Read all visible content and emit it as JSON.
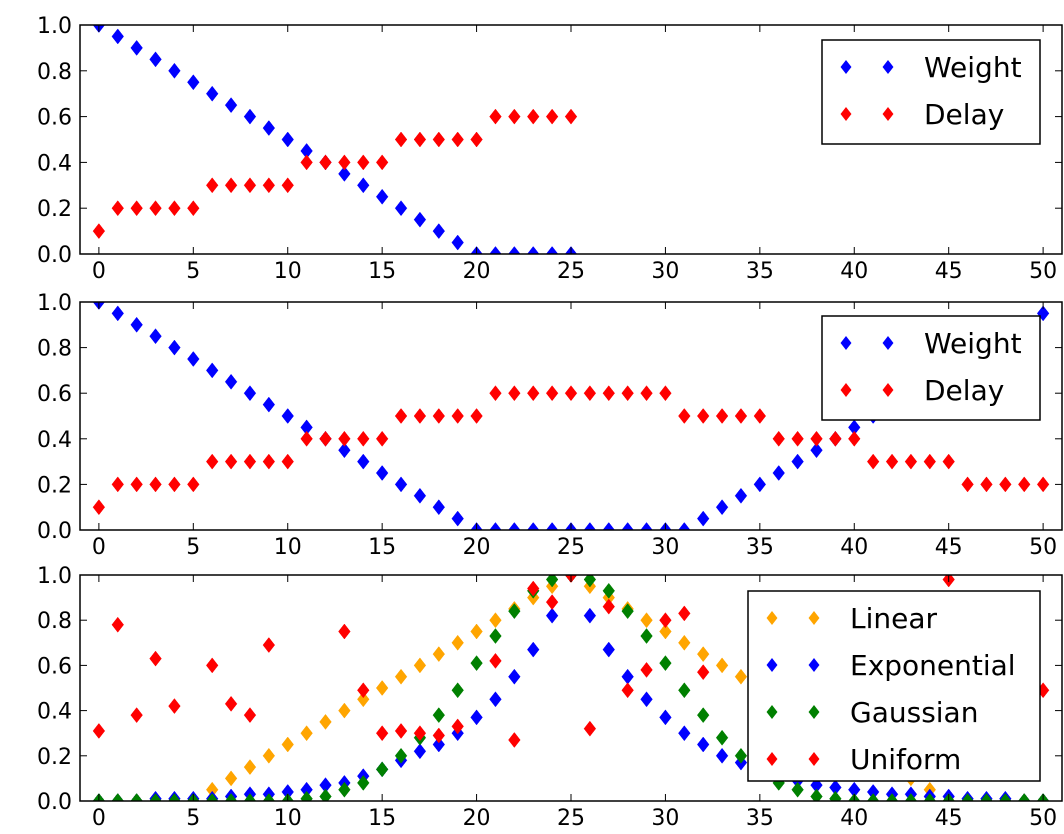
{
  "chart_data": [
    {
      "type": "scatter",
      "title": "",
      "xlabel": "",
      "ylabel": "",
      "xlim": [
        -1,
        51
      ],
      "ylim": [
        0,
        1
      ],
      "x_ticks": [
        "0",
        "5",
        "10",
        "15",
        "20",
        "25",
        "30",
        "35",
        "40",
        "45",
        "50"
      ],
      "y_ticks": [
        "0.0",
        "0.2",
        "0.4",
        "0.6",
        "0.8",
        "1.0"
      ],
      "grid": false,
      "legend_position": "top-right",
      "series": [
        {
          "name": "Weight",
          "color": "#0000ff",
          "x": [
            0,
            1,
            2,
            3,
            4,
            5,
            6,
            7,
            8,
            9,
            10,
            11,
            12,
            13,
            14,
            15,
            16,
            17,
            18,
            19,
            20,
            21,
            22,
            23,
            24,
            25
          ],
          "y": [
            1.0,
            0.95,
            0.9,
            0.85,
            0.8,
            0.75,
            0.7,
            0.65,
            0.6,
            0.55,
            0.5,
            0.45,
            0.4,
            0.35,
            0.3,
            0.25,
            0.2,
            0.15,
            0.1,
            0.05,
            0,
            0,
            0,
            0,
            0,
            0
          ]
        },
        {
          "name": "Delay",
          "color": "#ff0000",
          "x": [
            0,
            1,
            2,
            3,
            4,
            5,
            6,
            7,
            8,
            9,
            10,
            11,
            12,
            13,
            14,
            15,
            16,
            17,
            18,
            19,
            20,
            21,
            22,
            23,
            24,
            25
          ],
          "y": [
            0.1,
            0.2,
            0.2,
            0.2,
            0.2,
            0.2,
            0.3,
            0.3,
            0.3,
            0.3,
            0.3,
            0.4,
            0.4,
            0.4,
            0.4,
            0.4,
            0.5,
            0.5,
            0.5,
            0.5,
            0.5,
            0.6,
            0.6,
            0.6,
            0.6,
            0.6
          ]
        }
      ]
    },
    {
      "type": "scatter",
      "title": "",
      "xlabel": "",
      "ylabel": "",
      "xlim": [
        -1,
        51
      ],
      "ylim": [
        0,
        1
      ],
      "x_ticks": [
        "0",
        "5",
        "10",
        "15",
        "20",
        "25",
        "30",
        "35",
        "40",
        "45",
        "50"
      ],
      "y_ticks": [
        "0.0",
        "0.2",
        "0.4",
        "0.6",
        "0.8",
        "1.0"
      ],
      "grid": false,
      "legend_position": "top-right",
      "series": [
        {
          "name": "Weight",
          "color": "#0000ff",
          "x": [
            0,
            1,
            2,
            3,
            4,
            5,
            6,
            7,
            8,
            9,
            10,
            11,
            12,
            13,
            14,
            15,
            16,
            17,
            18,
            19,
            20,
            21,
            22,
            23,
            24,
            25,
            26,
            27,
            28,
            29,
            30,
            31,
            32,
            33,
            34,
            35,
            36,
            37,
            38,
            39,
            40,
            41,
            42,
            43,
            44,
            45,
            46,
            47,
            48,
            49,
            50
          ],
          "y": [
            1.0,
            0.95,
            0.9,
            0.85,
            0.8,
            0.75,
            0.7,
            0.65,
            0.6,
            0.55,
            0.5,
            0.45,
            0.4,
            0.35,
            0.3,
            0.25,
            0.2,
            0.15,
            0.1,
            0.05,
            0,
            0,
            0,
            0,
            0,
            0,
            0,
            0,
            0,
            0,
            0,
            0,
            0.05,
            0.1,
            0.15,
            0.2,
            0.25,
            0.3,
            0.35,
            0.4,
            0.45,
            0.5,
            0.55,
            0.6,
            0.65,
            0.7,
            0.75,
            0.8,
            0.85,
            0.9,
            0.95
          ]
        },
        {
          "name": "Delay",
          "color": "#ff0000",
          "x": [
            0,
            1,
            2,
            3,
            4,
            5,
            6,
            7,
            8,
            9,
            10,
            11,
            12,
            13,
            14,
            15,
            16,
            17,
            18,
            19,
            20,
            21,
            22,
            23,
            24,
            25,
            26,
            27,
            28,
            29,
            30,
            31,
            32,
            33,
            34,
            35,
            36,
            37,
            38,
            39,
            40,
            41,
            42,
            43,
            44,
            45,
            46,
            47,
            48,
            49,
            50
          ],
          "y": [
            0.1,
            0.2,
            0.2,
            0.2,
            0.2,
            0.2,
            0.3,
            0.3,
            0.3,
            0.3,
            0.3,
            0.4,
            0.4,
            0.4,
            0.4,
            0.4,
            0.5,
            0.5,
            0.5,
            0.5,
            0.5,
            0.6,
            0.6,
            0.6,
            0.6,
            0.6,
            0.6,
            0.6,
            0.6,
            0.6,
            0.6,
            0.5,
            0.5,
            0.5,
            0.5,
            0.5,
            0.4,
            0.4,
            0.4,
            0.4,
            0.4,
            0.3,
            0.3,
            0.3,
            0.3,
            0.3,
            0.2,
            0.2,
            0.2,
            0.2,
            0.2
          ]
        }
      ]
    },
    {
      "type": "scatter",
      "title": "",
      "xlabel": "",
      "ylabel": "",
      "xlim": [
        -1,
        51
      ],
      "ylim": [
        0,
        1
      ],
      "x_ticks": [
        "0",
        "5",
        "10",
        "15",
        "20",
        "25",
        "30",
        "35",
        "40",
        "45",
        "50"
      ],
      "y_ticks": [
        "0.0",
        "0.2",
        "0.4",
        "0.6",
        "0.8",
        "1.0"
      ],
      "grid": false,
      "legend_position": "top-right",
      "series": [
        {
          "name": "Linear",
          "color": "#ffa500",
          "x": [
            0,
            1,
            2,
            3,
            4,
            5,
            6,
            7,
            8,
            9,
            10,
            11,
            12,
            13,
            14,
            15,
            16,
            17,
            18,
            19,
            20,
            21,
            22,
            23,
            24,
            25,
            26,
            27,
            28,
            29,
            30,
            31,
            32,
            33,
            34,
            35,
            36,
            37,
            38,
            39,
            40,
            41,
            42,
            43,
            44,
            45,
            46,
            47,
            48,
            49,
            50
          ],
          "y": [
            0,
            0,
            0,
            0,
            0,
            0,
            0.05,
            0.1,
            0.15,
            0.2,
            0.25,
            0.3,
            0.35,
            0.4,
            0.45,
            0.5,
            0.55,
            0.6,
            0.65,
            0.7,
            0.75,
            0.8,
            0.85,
            0.9,
            0.95,
            1.0,
            0.95,
            0.9,
            0.85,
            0.8,
            0.75,
            0.7,
            0.65,
            0.6,
            0.55,
            0.5,
            0.45,
            0.4,
            0.35,
            0.3,
            0.25,
            0.2,
            0.15,
            0.1,
            0.05,
            0,
            0,
            0,
            0,
            0,
            0
          ]
        },
        {
          "name": "Exponential",
          "color": "#0000ff",
          "x": [
            0,
            1,
            2,
            3,
            4,
            5,
            6,
            7,
            8,
            9,
            10,
            11,
            12,
            13,
            14,
            15,
            16,
            17,
            18,
            19,
            20,
            21,
            22,
            23,
            24,
            25,
            26,
            27,
            28,
            29,
            30,
            31,
            32,
            33,
            34,
            35,
            36,
            37,
            38,
            39,
            40,
            41,
            42,
            43,
            44,
            45,
            46,
            47,
            48,
            49,
            50
          ],
          "y": [
            0.0,
            0.0,
            0.0,
            0.01,
            0.01,
            0.01,
            0.01,
            0.02,
            0.03,
            0.03,
            0.04,
            0.05,
            0.07,
            0.08,
            0.11,
            0.14,
            0.18,
            0.22,
            0.25,
            0.3,
            0.37,
            0.45,
            0.55,
            0.67,
            0.82,
            1.0,
            0.82,
            0.67,
            0.55,
            0.45,
            0.37,
            0.3,
            0.25,
            0.2,
            0.17,
            0.14,
            0.11,
            0.09,
            0.07,
            0.06,
            0.05,
            0.04,
            0.03,
            0.03,
            0.02,
            0.02,
            0.01,
            0.01,
            0.01,
            0.0,
            0.0
          ]
        },
        {
          "name": "Gaussian",
          "color": "#008000",
          "x": [
            0,
            1,
            2,
            3,
            4,
            5,
            6,
            7,
            8,
            9,
            10,
            11,
            12,
            13,
            14,
            15,
            16,
            17,
            18,
            19,
            20,
            21,
            22,
            23,
            24,
            25,
            26,
            27,
            28,
            29,
            30,
            31,
            32,
            33,
            34,
            35,
            36,
            37,
            38,
            39,
            40,
            41,
            42,
            43,
            44,
            45,
            46,
            47,
            48,
            49,
            50
          ],
          "y": [
            0,
            0,
            0,
            0,
            0,
            0,
            0,
            0,
            0,
            0,
            0,
            0.01,
            0.02,
            0.05,
            0.08,
            0.14,
            0.2,
            0.28,
            0.38,
            0.49,
            0.61,
            0.73,
            0.84,
            0.93,
            0.98,
            1.0,
            0.98,
            0.93,
            0.84,
            0.73,
            0.61,
            0.49,
            0.38,
            0.28,
            0.2,
            0.14,
            0.08,
            0.05,
            0.02,
            0.01,
            0,
            0,
            0,
            0,
            0,
            0,
            0,
            0,
            0,
            0,
            0
          ]
        },
        {
          "name": "Uniform",
          "color": "#ff0000",
          "x": [
            0,
            1,
            2,
            3,
            4,
            6,
            7,
            8,
            9,
            13,
            14,
            15,
            16,
            17,
            18,
            19,
            21,
            22,
            23,
            24,
            25,
            26,
            27,
            28,
            29,
            30,
            31,
            32,
            35,
            36,
            38,
            40,
            44,
            45,
            47,
            50
          ],
          "y": [
            0.31,
            0.78,
            0.38,
            0.63,
            0.42,
            0.6,
            0.43,
            0.38,
            0.69,
            0.75,
            0.49,
            0.3,
            0.31,
            0.3,
            0.29,
            0.33,
            0.62,
            0.27,
            0.94,
            0.88,
            1.0,
            0.32,
            0.86,
            0.49,
            0.58,
            0.8,
            0.83,
            0.57,
            0.41,
            0.36,
            0.44,
            0.29,
            0.57,
            0.98,
            0.42,
            0.49
          ]
        }
      ]
    }
  ]
}
